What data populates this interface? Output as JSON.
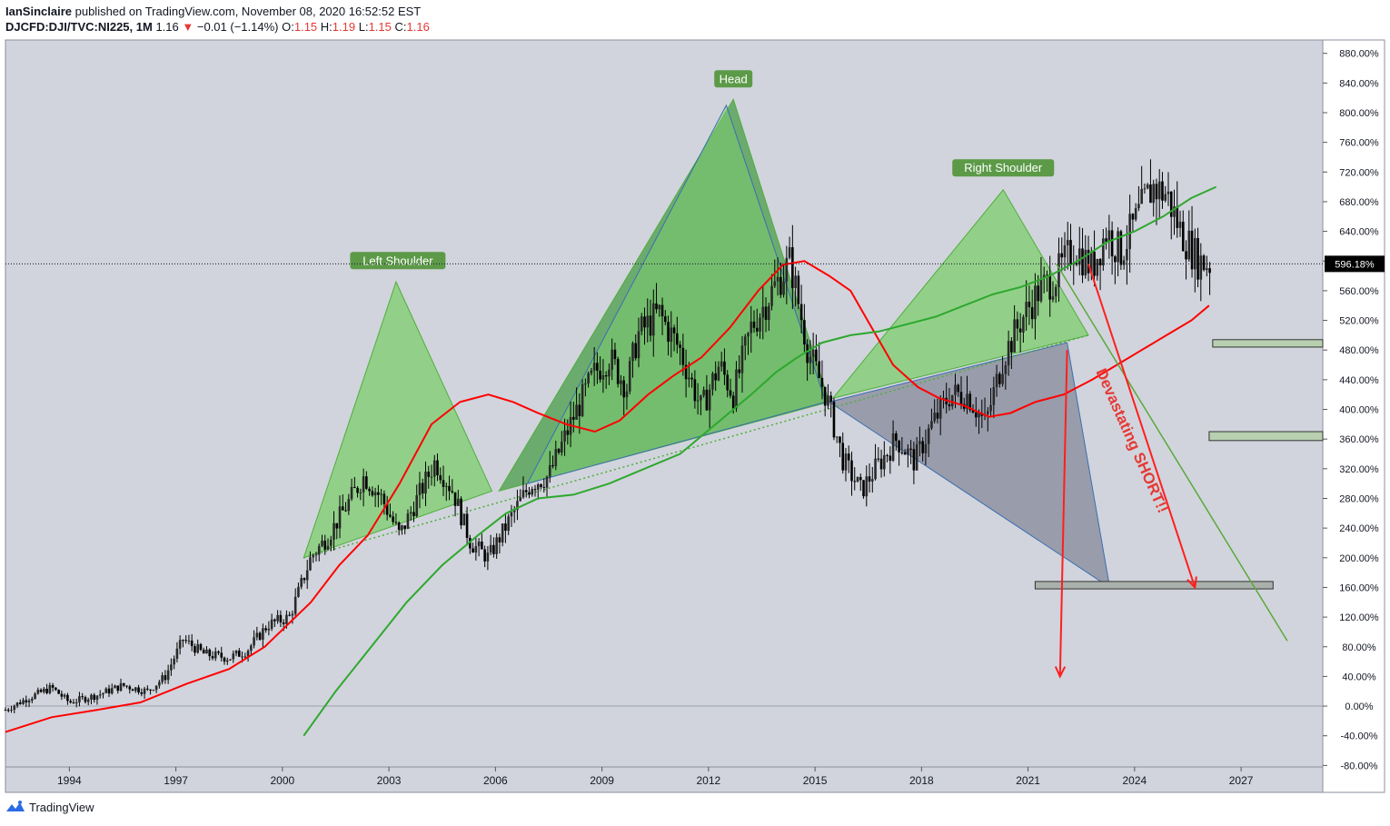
{
  "header": {
    "author": "IanSinclaire",
    "published_text": "published on TradingView.com, November 08, 2020 16:52:52 EST",
    "symbol": "DJCFD:DJI/TVC:NI225, 1M",
    "last": "1.16",
    "change_arrow": "▼",
    "change": "−0.01 (−1.14%)",
    "o_label": "O:",
    "o_val": "1.15",
    "h_label": "H:",
    "h_val": "1.19",
    "l_label": "L:",
    "l_val": "1.15",
    "c_label": "C:",
    "c_val": "1.16"
  },
  "footer": {
    "brand": "TradingView"
  },
  "chart_data": {
    "type": "candlestick",
    "x_range": [
      1992.2,
      2029.3
    ],
    "ylim": [
      -82,
      898
    ],
    "y_ticks": [
      -80,
      -40,
      0,
      40,
      80,
      120,
      160,
      200,
      240,
      280,
      320,
      360,
      400,
      440,
      480,
      520,
      560,
      600,
      640,
      680,
      720,
      760,
      800,
      840,
      880
    ],
    "y_tick_suffix": ".00%",
    "x_ticks": [
      1994,
      1997,
      2000,
      2003,
      2006,
      2009,
      2012,
      2015,
      2018,
      2021,
      2024,
      2027
    ],
    "last_price_label": "596.18%",
    "last_price_value": 596.18,
    "colors": {
      "background": "#d1d4dc",
      "candle": "#000000",
      "ma_red": "#ff0000",
      "ma_green": "#2ea82e",
      "pattern_fill": "#7ccf6e",
      "pattern_stroke": "#4fae3c",
      "grey_triangle": "#868a99",
      "arrow": "#ff1f1f",
      "label_bg": "#5c9a48",
      "zone_fill": "#b8cfb0"
    },
    "price_anchors": [
      [
        1992.2,
        -5
      ],
      [
        1992.8,
        10
      ],
      [
        1993.5,
        25
      ],
      [
        1994,
        5
      ],
      [
        1994.8,
        15
      ],
      [
        1995.5,
        28
      ],
      [
        1996.2,
        20
      ],
      [
        1996.7,
        40
      ],
      [
        1997.2,
        90
      ],
      [
        1997.8,
        70
      ],
      [
        1998.5,
        65
      ],
      [
        1999,
        75
      ],
      [
        1999.6,
        110
      ],
      [
        2000.2,
        120
      ],
      [
        2000.8,
        200
      ],
      [
        2001.3,
        230
      ],
      [
        2001.8,
        270
      ],
      [
        2002.3,
        310
      ],
      [
        2002.8,
        280
      ],
      [
        2003.3,
        230
      ],
      [
        2004,
        300
      ],
      [
        2004.3,
        330
      ],
      [
        2004.8,
        290
      ],
      [
        2005.3,
        220
      ],
      [
        2005.8,
        200
      ],
      [
        2006.5,
        260
      ],
      [
        2007,
        300
      ],
      [
        2007.5,
        310
      ],
      [
        2008.2,
        390
      ],
      [
        2008.8,
        450
      ],
      [
        2009.2,
        470
      ],
      [
        2009.7,
        430
      ],
      [
        2010,
        500
      ],
      [
        2010.6,
        530
      ],
      [
        2011.2,
        480
      ],
      [
        2011.8,
        400
      ],
      [
        2012.3,
        460
      ],
      [
        2012.7,
        420
      ],
      [
        2013.2,
        510
      ],
      [
        2013.8,
        560
      ],
      [
        2014.3,
        600
      ],
      [
        2014.8,
        480
      ],
      [
        2015.3,
        420
      ],
      [
        2015.8,
        330
      ],
      [
        2016.3,
        290
      ],
      [
        2016.7,
        320
      ],
      [
        2017.3,
        360
      ],
      [
        2017.8,
        330
      ],
      [
        2018.3,
        380
      ],
      [
        2018.8,
        420
      ],
      [
        2019.3,
        420
      ],
      [
        2019.8,
        380
      ],
      [
        2020.3,
        470
      ],
      [
        2020.8,
        520
      ],
      [
        2021.3,
        560
      ],
      [
        2021.8,
        580
      ],
      [
        2022.3,
        620
      ],
      [
        2022.8,
        590
      ],
      [
        2023.2,
        640
      ],
      [
        2023.6,
        610
      ],
      [
        2024.1,
        660
      ],
      [
        2024.5,
        700
      ],
      [
        2024.9,
        690
      ],
      [
        2025.3,
        640
      ],
      [
        2025.8,
        600
      ],
      [
        2026.1,
        596
      ]
    ],
    "ma_red": [
      [
        1992.2,
        -35
      ],
      [
        1993.5,
        -15
      ],
      [
        1994.8,
        -5
      ],
      [
        1996,
        5
      ],
      [
        1997.3,
        30
      ],
      [
        1998.5,
        50
      ],
      [
        1999.5,
        80
      ],
      [
        2000.8,
        140
      ],
      [
        2001.6,
        190
      ],
      [
        2002.4,
        230
      ],
      [
        2003.3,
        300
      ],
      [
        2004.2,
        380
      ],
      [
        2005,
        410
      ],
      [
        2005.8,
        420
      ],
      [
        2006.5,
        410
      ],
      [
        2007.2,
        395
      ],
      [
        2008,
        380
      ],
      [
        2008.8,
        370
      ],
      [
        2009.5,
        385
      ],
      [
        2010.3,
        420
      ],
      [
        2011,
        445
      ],
      [
        2011.8,
        470
      ],
      [
        2012.6,
        510
      ],
      [
        2013.4,
        560
      ],
      [
        2014.1,
        595
      ],
      [
        2014.7,
        600
      ],
      [
        2015.4,
        580
      ],
      [
        2016,
        560
      ],
      [
        2016.6,
        510
      ],
      [
        2017.2,
        460
      ],
      [
        2017.9,
        430
      ],
      [
        2018.5,
        415
      ],
      [
        2019.2,
        405
      ],
      [
        2019.9,
        390
      ],
      [
        2020.5,
        395
      ],
      [
        2021.2,
        410
      ],
      [
        2022,
        420
      ],
      [
        2022.8,
        440
      ],
      [
        2023.5,
        460
      ],
      [
        2024.2,
        480
      ],
      [
        2024.9,
        500
      ],
      [
        2025.6,
        520
      ],
      [
        2026.1,
        540
      ]
    ],
    "ma_green": [
      [
        2000.6,
        -40
      ],
      [
        2001.5,
        20
      ],
      [
        2002.5,
        80
      ],
      [
        2003.5,
        140
      ],
      [
        2004.5,
        190
      ],
      [
        2005.5,
        230
      ],
      [
        2006.3,
        260
      ],
      [
        2007.2,
        280
      ],
      [
        2008.2,
        285
      ],
      [
        2009.2,
        300
      ],
      [
        2010.2,
        320
      ],
      [
        2011.2,
        340
      ],
      [
        2012.2,
        380
      ],
      [
        2013.2,
        420
      ],
      [
        2013.9,
        450
      ],
      [
        2014.5,
        470
      ],
      [
        2015.2,
        490
      ],
      [
        2016,
        500
      ],
      [
        2016.8,
        505
      ],
      [
        2017.6,
        515
      ],
      [
        2018.4,
        525
      ],
      [
        2019.2,
        540
      ],
      [
        2020,
        555
      ],
      [
        2020.8,
        565
      ],
      [
        2021.6,
        580
      ],
      [
        2022.4,
        600
      ],
      [
        2023.2,
        625
      ],
      [
        2024,
        640
      ],
      [
        2024.8,
        660
      ],
      [
        2025.6,
        685
      ],
      [
        2026.3,
        700
      ]
    ],
    "annotations": [
      {
        "text": "Left Shoulder"
      },
      {
        "text": "Head"
      },
      {
        "text": "Right Shoulder"
      },
      {
        "text": "Devastating SHORT!!"
      }
    ]
  }
}
